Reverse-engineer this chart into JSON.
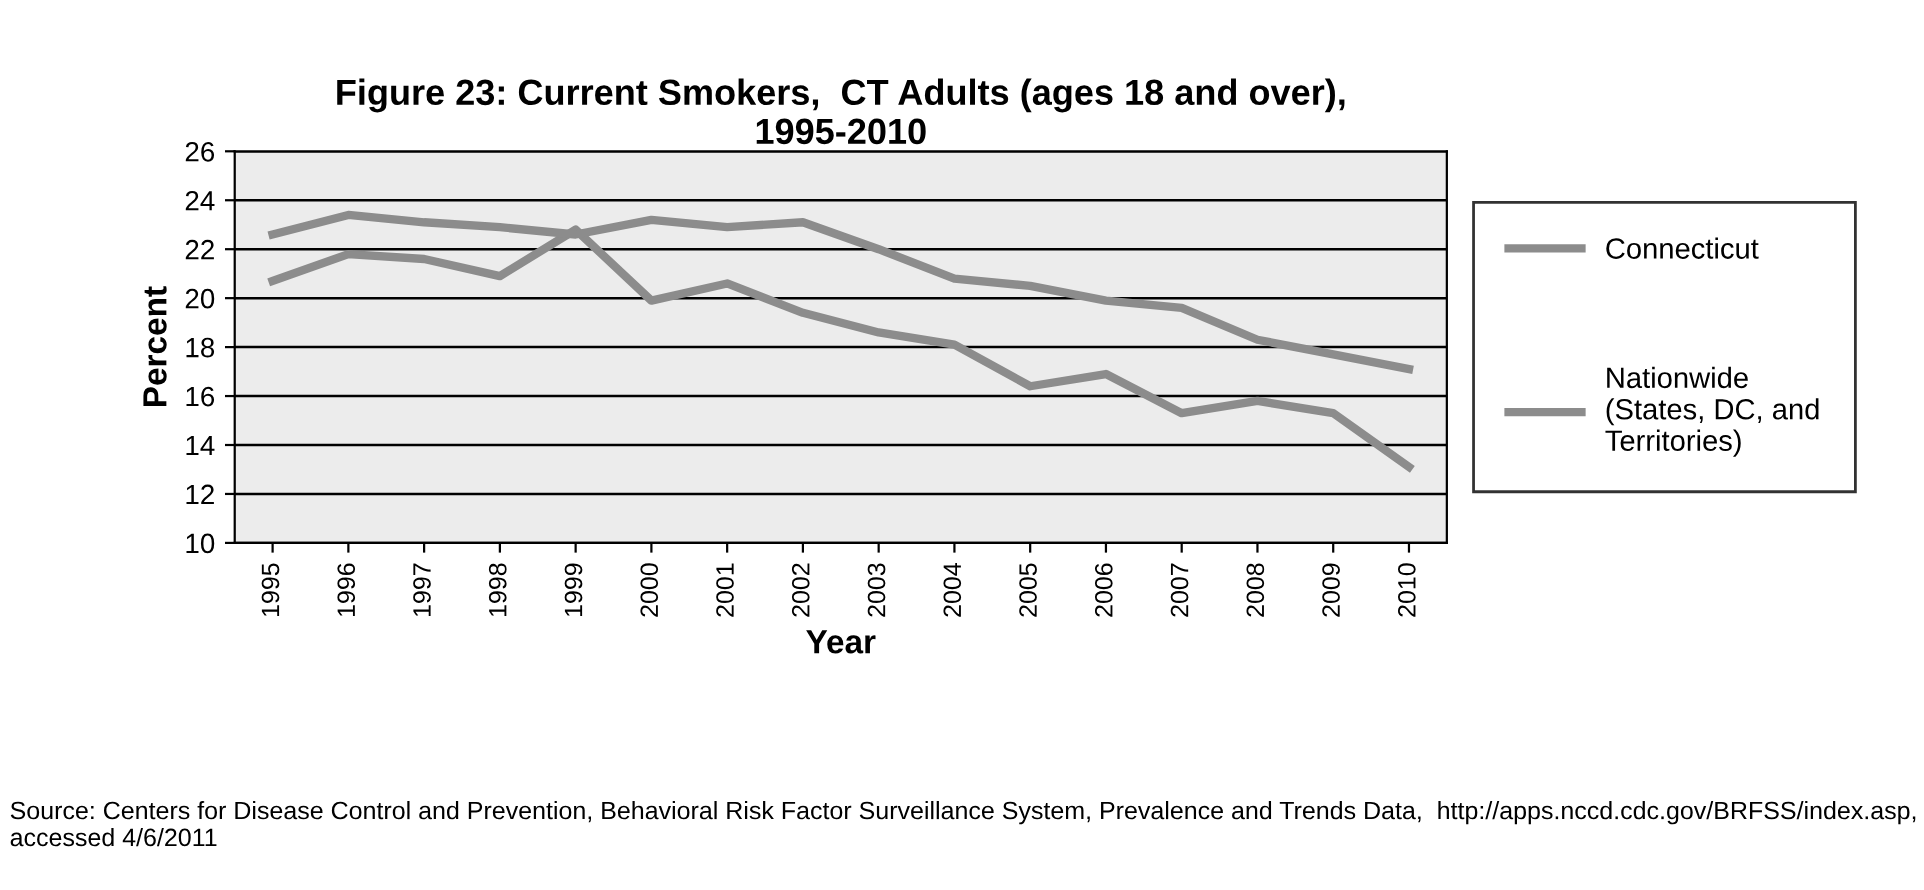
{
  "chart_data": {
    "type": "line",
    "title": "Figure 23: Current Smokers,  CT Adults (ages 18 and over),\n1995-2010",
    "xlabel": "Year",
    "ylabel": "Percent",
    "categories": [
      "1995",
      "1996",
      "1997",
      "1998",
      "1999",
      "2000",
      "2001",
      "2002",
      "2003",
      "2004",
      "2005",
      "2006",
      "2007",
      "2008",
      "2009",
      "2010"
    ],
    "series": [
      {
        "name": "Connecticut",
        "color": "#8c8c8c",
        "values": [
          20.7,
          21.8,
          21.6,
          20.9,
          22.8,
          19.9,
          20.6,
          19.4,
          18.6,
          18.1,
          16.4,
          16.9,
          15.3,
          15.8,
          15.3,
          13.1
        ]
      },
      {
        "name": "Nationwide\n(States, DC, and\nTerritories)",
        "color": "#8c8c8c",
        "values": [
          22.6,
          23.4,
          23.1,
          22.9,
          22.6,
          23.2,
          22.9,
          23.1,
          22.0,
          20.8,
          20.5,
          19.9,
          19.6,
          18.3,
          17.7,
          17.1
        ]
      }
    ],
    "ylim": [
      10,
      26
    ],
    "yticks": [
      10,
      12,
      14,
      16,
      18,
      20,
      22,
      24,
      26
    ],
    "grid": "y",
    "legend": "right",
    "marker": "none",
    "line_style": "solid",
    "annotations": [
      "Source: Centers for Disease Control and Prevention, Behavioral Risk Factor Surveillance System, Prevalence and Trends Data,  http://apps.nccd.cdc.gov/BRFSS/index.asp, accessed 4/6/2011"
    ]
  }
}
